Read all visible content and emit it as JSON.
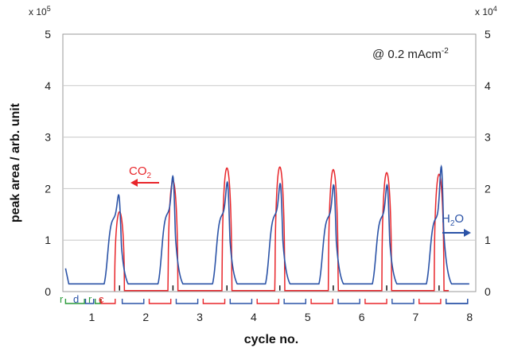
{
  "chart_data": {
    "type": "line",
    "title": "",
    "xlabel": "cycle no.",
    "ylabel": "peak area / arb. unit",
    "xlim": [
      0.45,
      8.1
    ],
    "ylim_left": [
      0,
      5
    ],
    "ylim_right": [
      0,
      5
    ],
    "left_multiplier": "x 10",
    "left_multiplier_exp": "5",
    "right_multiplier": "x 10",
    "right_multiplier_exp": "4",
    "yticks": [
      "0",
      "1",
      "2",
      "3",
      "4",
      "5"
    ],
    "xticks": [
      "1",
      "2",
      "3",
      "4",
      "5",
      "6",
      "7",
      "8"
    ],
    "grid": "horizontal",
    "annotation": {
      "prefix": "@ 0.2 mAcm",
      "sup": "-2"
    },
    "phase_labels": {
      "r": "r",
      "d": "d",
      "c": "c"
    },
    "series": [
      {
        "name_base": "CO",
        "name_sub": "2",
        "axis": "left",
        "color": "#e8262b",
        "peaks": [
          {
            "x": 1.5,
            "y": 1.55
          },
          {
            "x": 2.49,
            "y": 2.15
          },
          {
            "x": 3.49,
            "y": 2.4
          },
          {
            "x": 4.47,
            "y": 2.42
          },
          {
            "x": 5.46,
            "y": 2.37
          },
          {
            "x": 6.45,
            "y": 2.31
          },
          {
            "x": 7.42,
            "y": 2.28
          }
        ],
        "baseline": 0.12
      },
      {
        "name_base": "H",
        "name_sub": "2",
        "name_suffix": "O",
        "axis": "right",
        "color": "#2b53a7",
        "peaks": [
          {
            "x": 1.5,
            "y": 1.72,
            "shoulder": 1.45
          },
          {
            "x": 2.5,
            "y": 2.1,
            "shoulder": 1.55
          },
          {
            "x": 3.51,
            "y": 1.98,
            "shoulder": 1.52
          },
          {
            "x": 4.49,
            "y": 1.95,
            "shoulder": 1.52
          },
          {
            "x": 5.48,
            "y": 1.93,
            "shoulder": 1.48
          },
          {
            "x": 6.47,
            "y": 1.93,
            "shoulder": 1.48
          },
          {
            "x": 7.47,
            "y": 2.32,
            "shoulder": 1.45
          }
        ],
        "baseline": 0.15
      }
    ]
  }
}
